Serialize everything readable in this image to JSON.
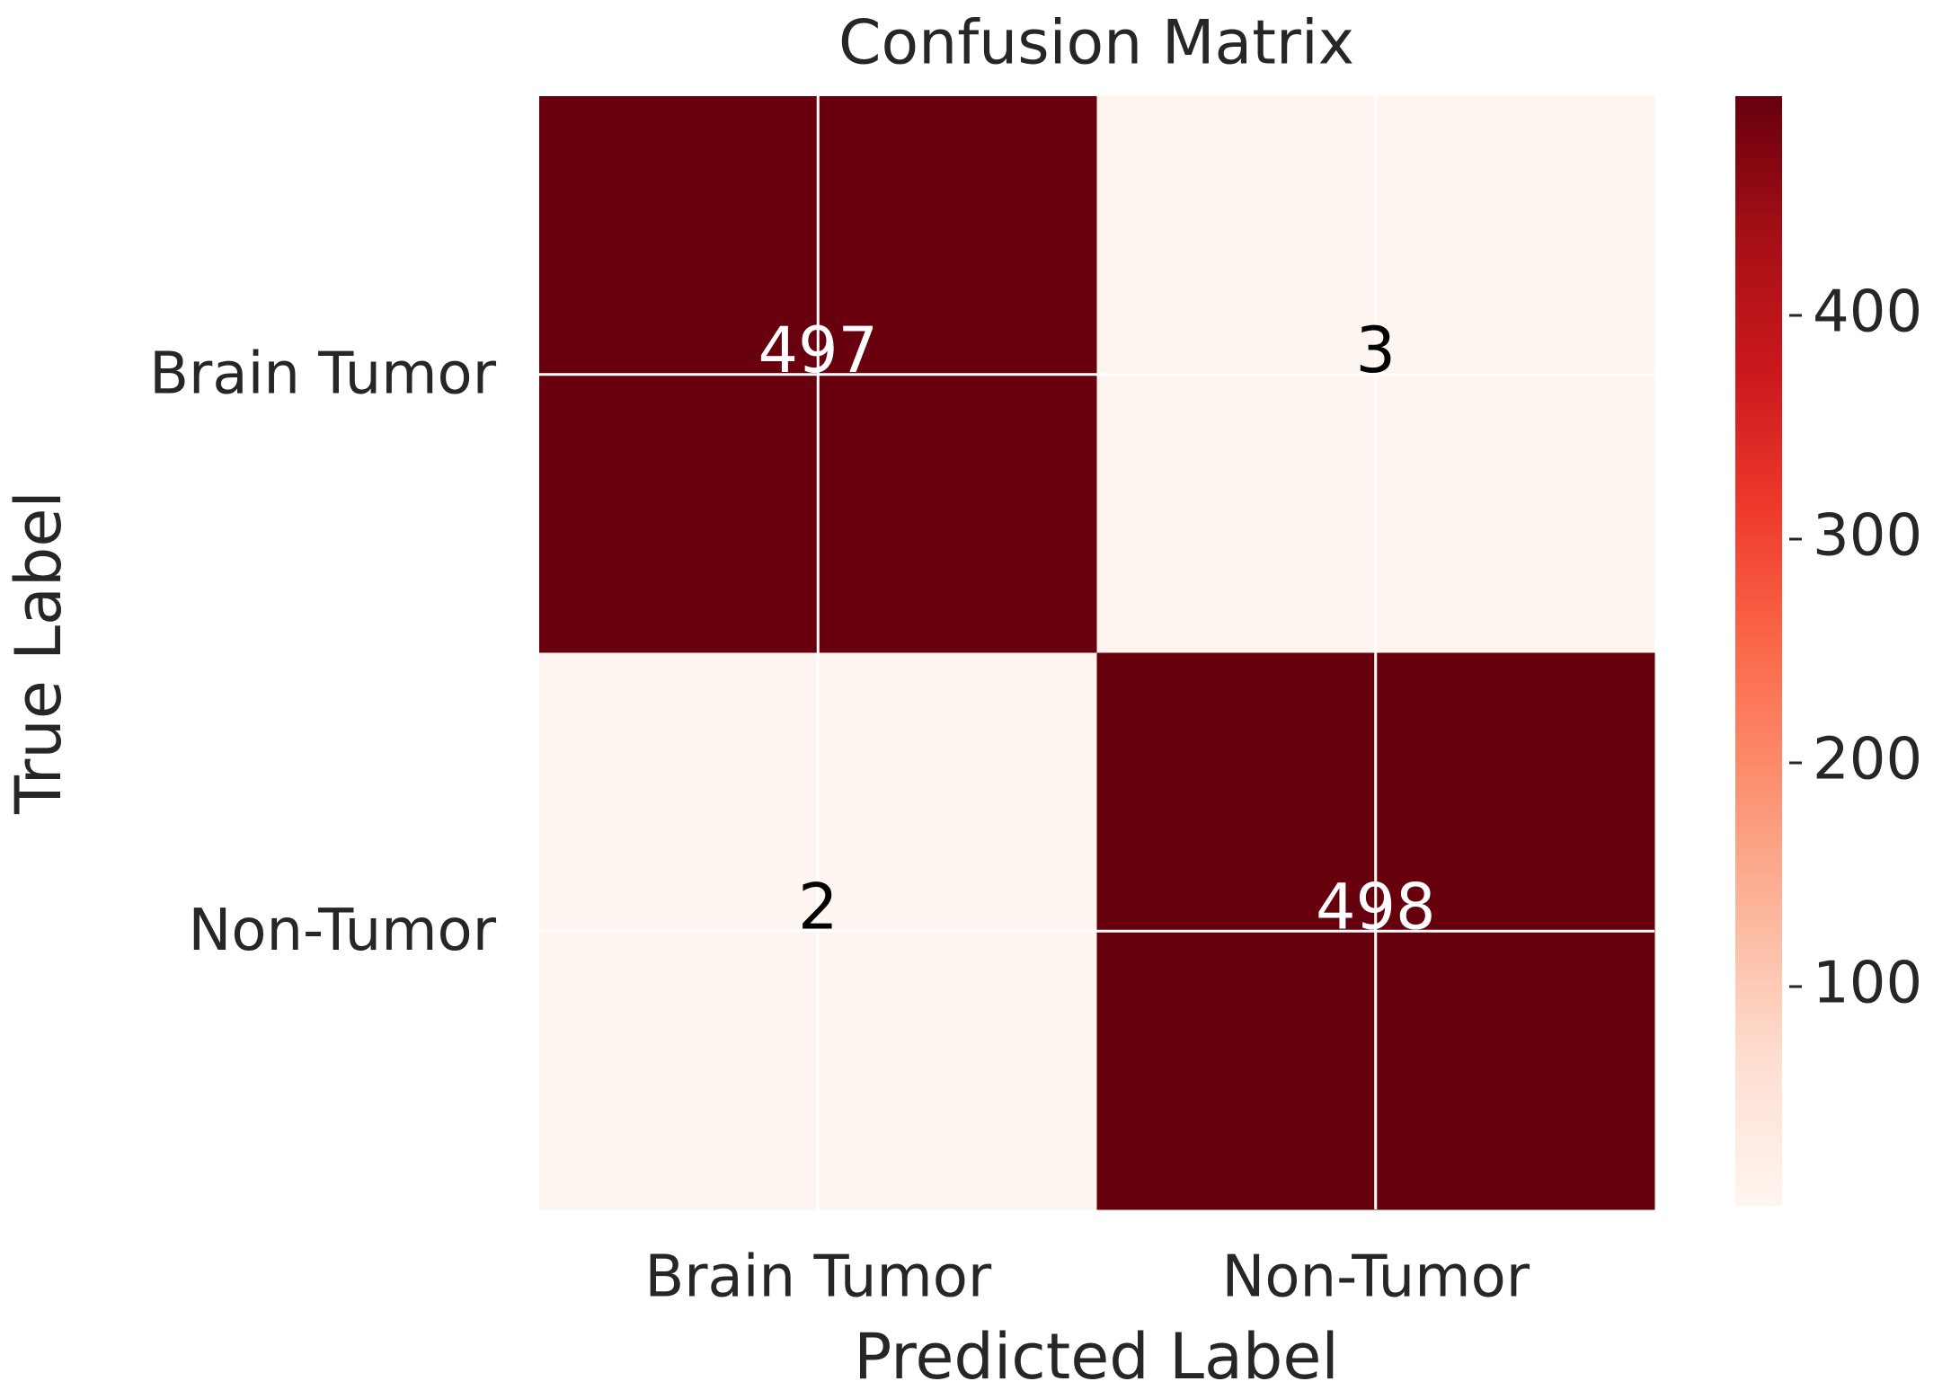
{
  "chart_data": {
    "type": "heatmap",
    "title": "Confusion Matrix",
    "xlabel": "Predicted Label",
    "ylabel": "True Label",
    "xcategories": [
      "Brain Tumor",
      "Non-Tumor"
    ],
    "ycategories": [
      "Brain Tumor",
      "Non-Tumor"
    ],
    "values": [
      [
        497,
        3
      ],
      [
        2,
        498
      ]
    ],
    "colormap": "Reds",
    "clim": [
      2,
      498
    ],
    "cticks": [
      100,
      200,
      300,
      400
    ],
    "grid": true
  }
}
